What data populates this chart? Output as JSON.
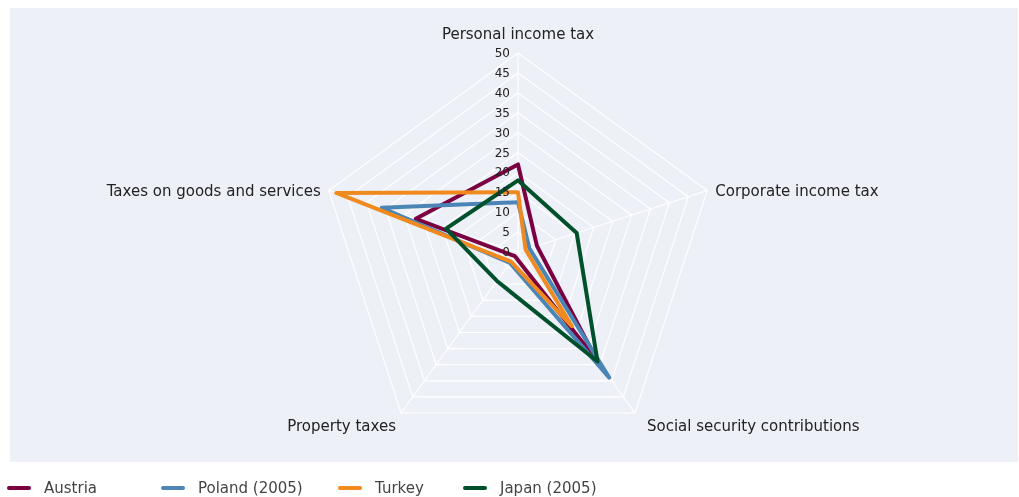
{
  "chart_data": {
    "type": "radar",
    "categories": [
      "Personal income tax",
      "Corporate income tax",
      "Social security contributions",
      "Property taxes",
      "Taxes on goods and services"
    ],
    "series": [
      {
        "name": "Austria",
        "color": "#7b0041",
        "values": [
          22,
          5,
          34,
          1.3,
          27
        ]
      },
      {
        "name": "Poland (2005)",
        "color": "#4a85b5",
        "values": [
          12.5,
          3,
          39,
          3.4,
          36
        ]
      },
      {
        "name": "Turkey",
        "color": "#f08a1e",
        "values": [
          15,
          2,
          23,
          3,
          48
        ]
      },
      {
        "name": "Japan (2005)",
        "color": "#00512b",
        "values": [
          18,
          15.5,
          34,
          9,
          19
        ]
      }
    ],
    "ylim": [
      0,
      50
    ],
    "yticks": [
      0,
      5,
      10,
      15,
      20,
      25,
      30,
      35,
      40,
      45,
      50
    ],
    "grid": true,
    "legend": "bottom left",
    "marker": "none",
    "line_style": "solid"
  }
}
